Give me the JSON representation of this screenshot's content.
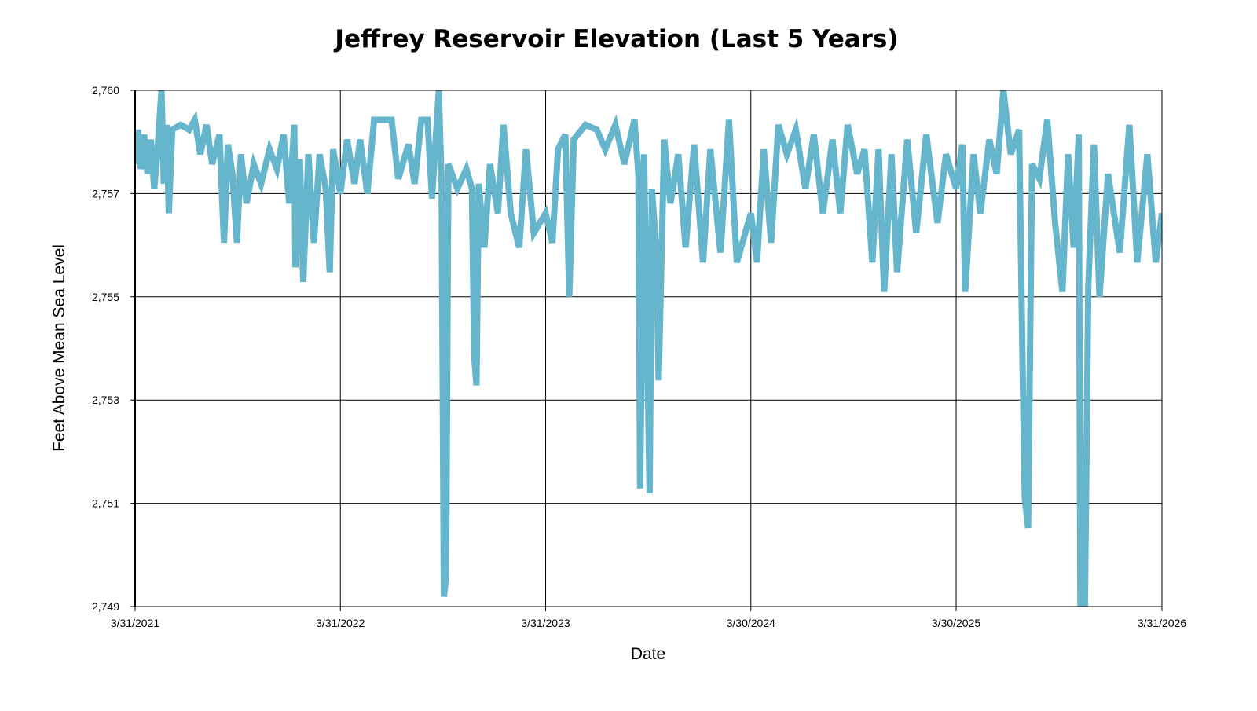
{
  "chart_data": {
    "type": "line",
    "title": "Jeffrey Reservoir Elevation (Last 5 Years)",
    "xlabel": "Date",
    "ylabel": "Feet Above Mean Sea Level",
    "xlim": [
      "2021-03-31",
      "2026-03-31"
    ],
    "ylim": [
      2749,
      2759.5
    ],
    "grid": true,
    "line_color": "#65b5cd",
    "x_ticks": [
      {
        "date": "2021-03-31",
        "label": "3/31/2021"
      },
      {
        "date": "2022-03-31",
        "label": "3/31/2022"
      },
      {
        "date": "2023-03-31",
        "label": "3/31/2023"
      },
      {
        "date": "2024-03-30",
        "label": "3/30/2024"
      },
      {
        "date": "2025-03-30",
        "label": "3/30/2025"
      },
      {
        "date": "2026-03-31",
        "label": "3/31/2026"
      }
    ],
    "y_ticks": [
      {
        "value": 2749,
        "label": "2,749"
      },
      {
        "value": 2751.1,
        "label": "2,751"
      },
      {
        "value": 2753.2,
        "label": "2,753"
      },
      {
        "value": 2755.3,
        "label": "2,755"
      },
      {
        "value": 2757.4,
        "label": "2,757"
      },
      {
        "value": 2759.5,
        "label": "2,760"
      }
    ],
    "series": [
      {
        "points": [
          [
            "2021-03-31",
            2758.0
          ],
          [
            "2021-04-05",
            2758.7
          ],
          [
            "2021-04-10",
            2757.9
          ],
          [
            "2021-04-16",
            2758.6
          ],
          [
            "2021-04-22",
            2757.8
          ],
          [
            "2021-04-28",
            2758.5
          ],
          [
            "2021-05-04",
            2757.5
          ],
          [
            "2021-05-10",
            2758.3
          ],
          [
            "2021-05-17",
            2759.5
          ],
          [
            "2021-05-21",
            2757.6
          ],
          [
            "2021-05-26",
            2758.8
          ],
          [
            "2021-05-30",
            2757.0
          ],
          [
            "2021-06-05",
            2758.7
          ],
          [
            "2021-06-20",
            2758.8
          ],
          [
            "2021-07-05",
            2758.7
          ],
          [
            "2021-07-15",
            2758.9
          ],
          [
            "2021-07-25",
            2758.2
          ],
          [
            "2021-08-05",
            2758.8
          ],
          [
            "2021-08-15",
            2758.0
          ],
          [
            "2021-08-28",
            2758.6
          ],
          [
            "2021-09-05",
            2756.4
          ],
          [
            "2021-09-12",
            2758.4
          ],
          [
            "2021-09-20",
            2757.8
          ],
          [
            "2021-09-28",
            2756.4
          ],
          [
            "2021-10-05",
            2758.2
          ],
          [
            "2021-10-15",
            2757.2
          ],
          [
            "2021-10-28",
            2758.0
          ],
          [
            "2021-11-10",
            2757.6
          ],
          [
            "2021-11-25",
            2758.3
          ],
          [
            "2021-12-08",
            2757.9
          ],
          [
            "2021-12-20",
            2758.6
          ],
          [
            "2021-12-30",
            2757.2
          ],
          [
            "2022-01-08",
            2758.8
          ],
          [
            "2022-01-10",
            2755.9
          ],
          [
            "2022-01-18",
            2758.1
          ],
          [
            "2022-01-24",
            2755.6
          ],
          [
            "2022-02-02",
            2758.2
          ],
          [
            "2022-02-12",
            2756.4
          ],
          [
            "2022-02-22",
            2758.2
          ],
          [
            "2022-03-05",
            2757.5
          ],
          [
            "2022-03-12",
            2755.8
          ],
          [
            "2022-03-18",
            2758.3
          ],
          [
            "2022-03-31",
            2757.4
          ],
          [
            "2022-04-12",
            2758.5
          ],
          [
            "2022-04-25",
            2757.6
          ],
          [
            "2022-05-05",
            2758.5
          ],
          [
            "2022-05-18",
            2757.4
          ],
          [
            "2022-05-30",
            2758.9
          ],
          [
            "2022-06-12",
            2758.9
          ],
          [
            "2022-06-30",
            2758.9
          ],
          [
            "2022-07-12",
            2757.7
          ],
          [
            "2022-07-30",
            2758.4
          ],
          [
            "2022-08-10",
            2757.6
          ],
          [
            "2022-08-22",
            2758.9
          ],
          [
            "2022-09-02",
            2758.9
          ],
          [
            "2022-09-10",
            2757.3
          ],
          [
            "2022-09-22",
            2759.5
          ],
          [
            "2022-09-27",
            2757.6
          ],
          [
            "2022-10-01",
            2749.2
          ],
          [
            "2022-10-05",
            2749.6
          ],
          [
            "2022-10-09",
            2758.0
          ],
          [
            "2022-10-25",
            2757.5
          ],
          [
            "2022-11-10",
            2757.9
          ],
          [
            "2022-11-20",
            2757.5
          ],
          [
            "2022-11-24",
            2754.1
          ],
          [
            "2022-11-28",
            2753.5
          ],
          [
            "2022-12-02",
            2757.6
          ],
          [
            "2022-12-12",
            2756.3
          ],
          [
            "2022-12-22",
            2758.0
          ],
          [
            "2023-01-05",
            2757.0
          ],
          [
            "2023-01-15",
            2758.8
          ],
          [
            "2023-01-28",
            2757.0
          ],
          [
            "2023-02-12",
            2756.3
          ],
          [
            "2023-02-24",
            2758.3
          ],
          [
            "2023-03-10",
            2756.6
          ],
          [
            "2023-03-31",
            2757.0
          ],
          [
            "2023-04-12",
            2756.4
          ],
          [
            "2023-04-22",
            2758.3
          ],
          [
            "2023-05-05",
            2758.6
          ],
          [
            "2023-05-12",
            2755.3
          ],
          [
            "2023-05-20",
            2758.5
          ],
          [
            "2023-06-10",
            2758.8
          ],
          [
            "2023-06-30",
            2758.7
          ],
          [
            "2023-07-15",
            2758.3
          ],
          [
            "2023-08-02",
            2758.8
          ],
          [
            "2023-08-18",
            2758.0
          ],
          [
            "2023-09-05",
            2758.9
          ],
          [
            "2023-09-12",
            2757.8
          ],
          [
            "2023-09-15",
            2751.4
          ],
          [
            "2023-09-22",
            2758.2
          ],
          [
            "2023-10-02",
            2751.3
          ],
          [
            "2023-10-06",
            2757.5
          ],
          [
            "2023-10-14",
            2756.2
          ],
          [
            "2023-10-18",
            2753.6
          ],
          [
            "2023-10-28",
            2758.5
          ],
          [
            "2023-11-08",
            2757.2
          ],
          [
            "2023-11-22",
            2758.2
          ],
          [
            "2023-12-05",
            2756.3
          ],
          [
            "2023-12-20",
            2758.4
          ],
          [
            "2024-01-05",
            2756.0
          ],
          [
            "2024-01-18",
            2758.3
          ],
          [
            "2024-02-05",
            2756.2
          ],
          [
            "2024-02-20",
            2758.9
          ],
          [
            "2024-03-05",
            2756.0
          ],
          [
            "2024-03-30",
            2757.0
          ],
          [
            "2024-04-10",
            2756.0
          ],
          [
            "2024-04-22",
            2758.3
          ],
          [
            "2024-05-05",
            2756.4
          ],
          [
            "2024-05-18",
            2758.8
          ],
          [
            "2024-06-02",
            2758.2
          ],
          [
            "2024-06-18",
            2758.7
          ],
          [
            "2024-07-05",
            2757.5
          ],
          [
            "2024-07-20",
            2758.6
          ],
          [
            "2024-08-05",
            2757.0
          ],
          [
            "2024-08-22",
            2758.5
          ],
          [
            "2024-09-05",
            2757.0
          ],
          [
            "2024-09-18",
            2758.8
          ],
          [
            "2024-10-05",
            2757.8
          ],
          [
            "2024-10-18",
            2758.3
          ],
          [
            "2024-11-01",
            2756.0
          ],
          [
            "2024-11-12",
            2758.3
          ],
          [
            "2024-11-22",
            2755.4
          ],
          [
            "2024-12-05",
            2758.2
          ],
          [
            "2024-12-15",
            2755.8
          ],
          [
            "2025-01-02",
            2758.5
          ],
          [
            "2025-01-18",
            2756.6
          ],
          [
            "2025-02-05",
            2758.6
          ],
          [
            "2025-02-25",
            2756.8
          ],
          [
            "2025-03-12",
            2758.2
          ],
          [
            "2025-03-30",
            2757.5
          ],
          [
            "2025-04-10",
            2758.4
          ],
          [
            "2025-04-15",
            2755.4
          ],
          [
            "2025-04-30",
            2758.2
          ],
          [
            "2025-05-12",
            2757.0
          ],
          [
            "2025-05-28",
            2758.5
          ],
          [
            "2025-06-10",
            2757.8
          ],
          [
            "2025-06-22",
            2759.5
          ],
          [
            "2025-07-05",
            2758.2
          ],
          [
            "2025-07-20",
            2758.7
          ],
          [
            "2025-07-26",
            2754.0
          ],
          [
            "2025-07-30",
            2751.2
          ],
          [
            "2025-08-05",
            2750.6
          ],
          [
            "2025-08-12",
            2758.0
          ],
          [
            "2025-08-25",
            2757.7
          ],
          [
            "2025-09-08",
            2758.9
          ],
          [
            "2025-09-22",
            2756.8
          ],
          [
            "2025-10-05",
            2755.4
          ],
          [
            "2025-10-15",
            2758.2
          ],
          [
            "2025-10-25",
            2756.3
          ],
          [
            "2025-11-03",
            2758.6
          ],
          [
            "2025-11-06",
            2749.0
          ],
          [
            "2025-11-14",
            2749.0
          ],
          [
            "2025-11-20",
            2755.5
          ],
          [
            "2025-11-30",
            2758.4
          ],
          [
            "2025-12-10",
            2755.3
          ],
          [
            "2025-12-25",
            2757.8
          ],
          [
            "2026-01-15",
            2756.2
          ],
          [
            "2026-02-01",
            2758.8
          ],
          [
            "2026-02-15",
            2756.0
          ],
          [
            "2026-03-05",
            2758.2
          ],
          [
            "2026-03-20",
            2756.0
          ],
          [
            "2026-03-31",
            2757.0
          ]
        ]
      }
    ]
  }
}
